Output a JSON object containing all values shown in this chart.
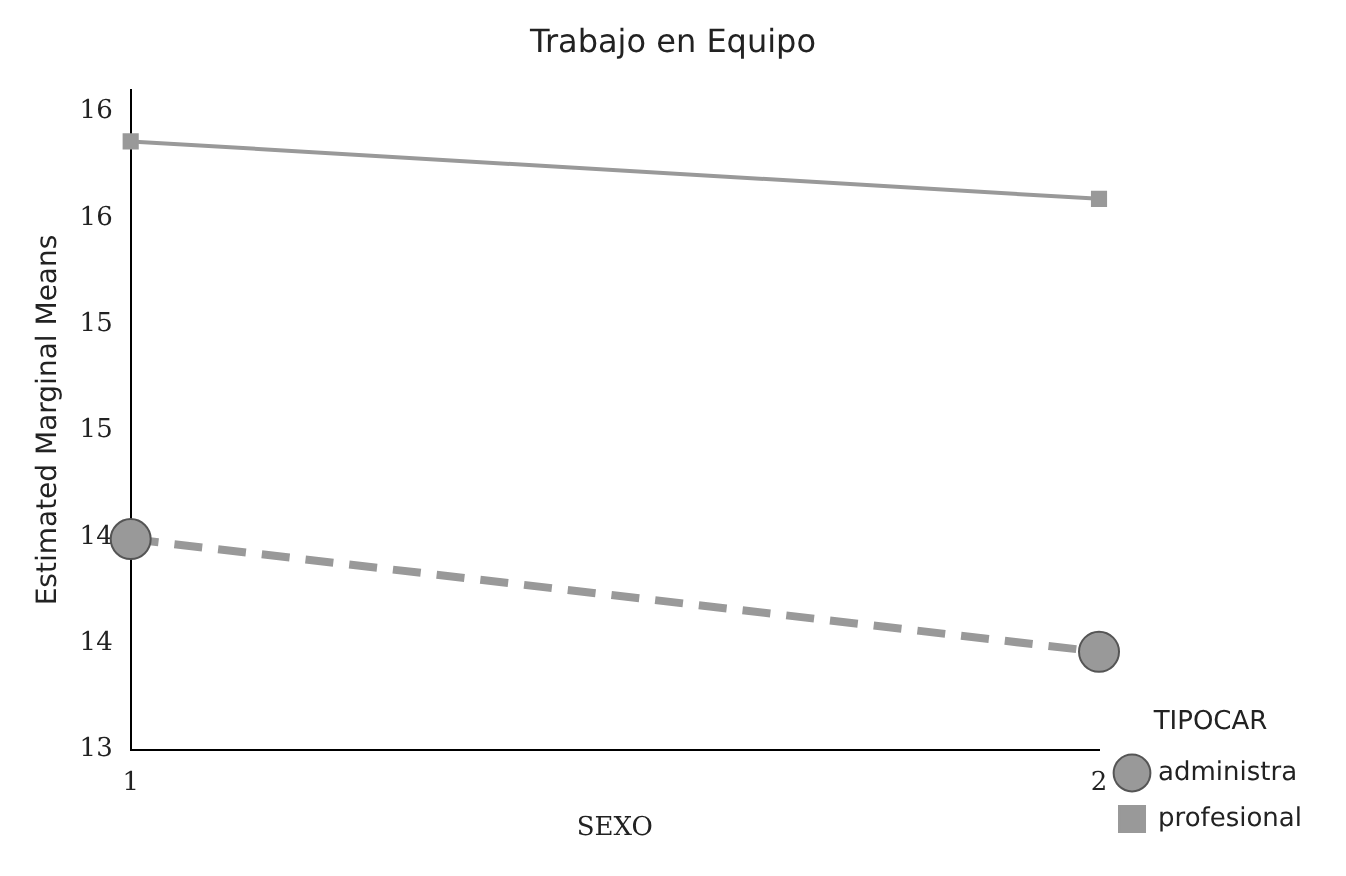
{
  "chart_data": {
    "type": "line",
    "title": "Trabajo en Equipo",
    "xlabel": "SEXO",
    "ylabel": "Estimated Marginal Means",
    "legend_title": "TIPOCAR",
    "categories": [
      "1",
      "2"
    ],
    "series": [
      {
        "name": "administra",
        "color": "#999999",
        "values": [
          13.99,
          13.46
        ],
        "marker": "circle",
        "line_style": "dashed"
      },
      {
        "name": "profesional",
        "color": "#999999",
        "values": [
          15.86,
          15.59
        ],
        "marker": "square",
        "line_style": "solid"
      }
    ],
    "ylim": [
      13.0,
      16.1
    ],
    "yticks": [
      {
        "value": 13.0,
        "label": "13"
      },
      {
        "value": 13.5,
        "label": "14"
      },
      {
        "value": 14.0,
        "label": "14"
      },
      {
        "value": 14.5,
        "label": "15"
      },
      {
        "value": 15.0,
        "label": "15"
      },
      {
        "value": 15.5,
        "label": "16"
      },
      {
        "value": 16.0,
        "label": "16"
      }
    ],
    "grid": false,
    "legend": "right"
  }
}
